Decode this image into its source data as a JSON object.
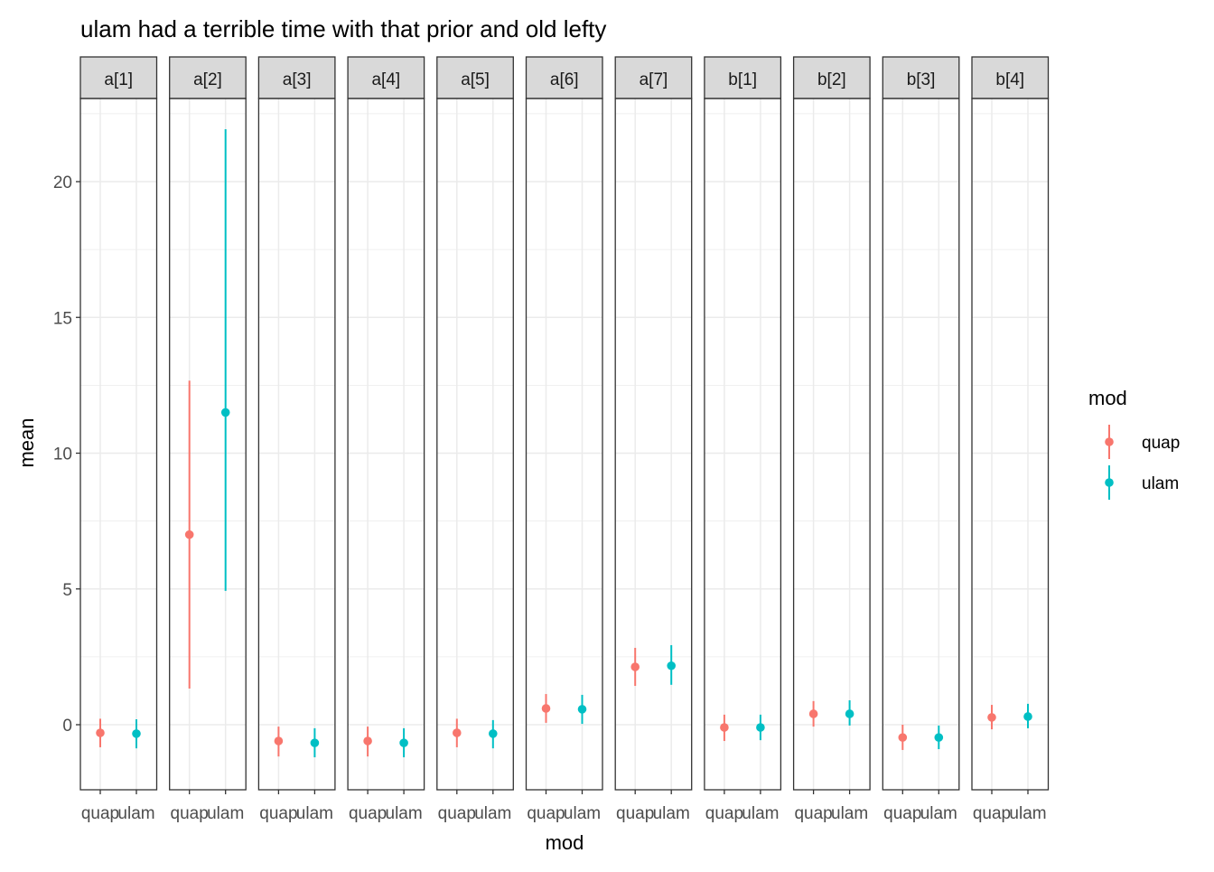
{
  "chart_data": {
    "type": "scatter",
    "geom": "pointrange",
    "title": "ulam had a terrible time with that prior and old lefty",
    "xlabel": "mod",
    "ylabel": "mean",
    "ylim": [
      -2.4,
      23.2
    ],
    "yticks": [
      0,
      5,
      10,
      15,
      20
    ],
    "grid": true,
    "legend": {
      "title": "mod",
      "position": "right",
      "entries": [
        {
          "label": "quap",
          "color": "#F8766D"
        },
        {
          "label": "ulam",
          "color": "#00BFC4"
        }
      ]
    },
    "categories": [
      "quap",
      "ulam"
    ],
    "colors": {
      "quap": "#F8766D",
      "ulam": "#00BFC4",
      "strip_fill": "#D9D9D9",
      "grid": "#EBEBEB"
    },
    "facets": [
      {
        "label": "a[1]",
        "points": [
          {
            "mod": "quap",
            "mean": -0.3,
            "lower": -0.83,
            "upper": 0.22
          },
          {
            "mod": "ulam",
            "mean": -0.33,
            "lower": -0.87,
            "upper": 0.2
          }
        ]
      },
      {
        "label": "a[2]",
        "points": [
          {
            "mod": "quap",
            "mean": 7.0,
            "lower": 1.33,
            "upper": 12.67
          },
          {
            "mod": "ulam",
            "mean": 11.5,
            "lower": 4.93,
            "upper": 21.93
          }
        ]
      },
      {
        "label": "a[3]",
        "points": [
          {
            "mod": "quap",
            "mean": -0.6,
            "lower": -1.17,
            "upper": -0.07
          },
          {
            "mod": "ulam",
            "mean": -0.67,
            "lower": -1.2,
            "upper": -0.13
          }
        ]
      },
      {
        "label": "a[4]",
        "points": [
          {
            "mod": "quap",
            "mean": -0.6,
            "lower": -1.17,
            "upper": -0.07
          },
          {
            "mod": "ulam",
            "mean": -0.67,
            "lower": -1.2,
            "upper": -0.13
          }
        ]
      },
      {
        "label": "a[5]",
        "points": [
          {
            "mod": "quap",
            "mean": -0.3,
            "lower": -0.83,
            "upper": 0.22
          },
          {
            "mod": "ulam",
            "mean": -0.33,
            "lower": -0.87,
            "upper": 0.17
          }
        ]
      },
      {
        "label": "a[6]",
        "points": [
          {
            "mod": "quap",
            "mean": 0.6,
            "lower": 0.07,
            "upper": 1.13
          },
          {
            "mod": "ulam",
            "mean": 0.57,
            "lower": 0.03,
            "upper": 1.1
          }
        ]
      },
      {
        "label": "a[7]",
        "points": [
          {
            "mod": "quap",
            "mean": 2.13,
            "lower": 1.43,
            "upper": 2.83
          },
          {
            "mod": "ulam",
            "mean": 2.17,
            "lower": 1.47,
            "upper": 2.93
          }
        ]
      },
      {
        "label": "b[1]",
        "points": [
          {
            "mod": "quap",
            "mean": -0.1,
            "lower": -0.6,
            "upper": 0.37
          },
          {
            "mod": "ulam",
            "mean": -0.1,
            "lower": -0.57,
            "upper": 0.37
          }
        ]
      },
      {
        "label": "b[2]",
        "points": [
          {
            "mod": "quap",
            "mean": 0.4,
            "lower": -0.07,
            "upper": 0.87
          },
          {
            "mod": "ulam",
            "mean": 0.4,
            "lower": -0.03,
            "upper": 0.9
          }
        ]
      },
      {
        "label": "b[3]",
        "points": [
          {
            "mod": "quap",
            "mean": -0.47,
            "lower": -0.93,
            "upper": 0.0
          },
          {
            "mod": "ulam",
            "mean": -0.47,
            "lower": -0.9,
            "upper": -0.03
          }
        ]
      },
      {
        "label": "b[4]",
        "points": [
          {
            "mod": "quap",
            "mean": 0.27,
            "lower": -0.17,
            "upper": 0.73
          },
          {
            "mod": "ulam",
            "mean": 0.3,
            "lower": -0.13,
            "upper": 0.77
          }
        ]
      }
    ]
  }
}
